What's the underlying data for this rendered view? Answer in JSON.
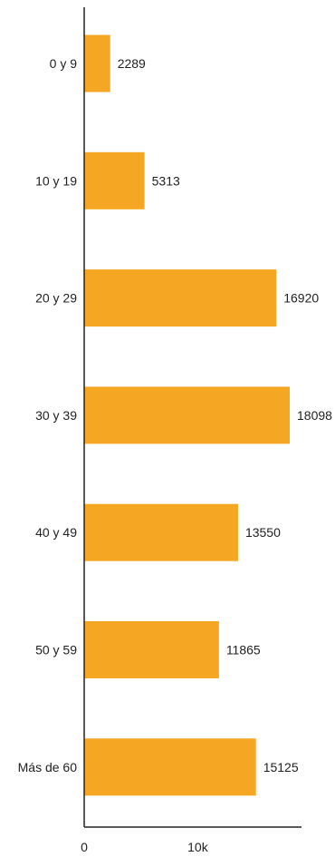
{
  "chart_data": {
    "type": "bar",
    "orientation": "horizontal",
    "title": "",
    "xlabel": "",
    "ylabel": "",
    "categories": [
      "0 y 9",
      "10 y 19",
      "20 y 29",
      "30 y 39",
      "40 y 49",
      "50 y 59",
      "Más de 60"
    ],
    "values": [
      2289,
      5313,
      16920,
      18098,
      13550,
      11865,
      15125
    ],
    "value_labels": [
      "2289",
      "5313",
      "16920",
      "18098",
      "13550",
      "11865",
      "15125"
    ],
    "xlim": [
      0,
      19000
    ],
    "x_ticks": [
      0,
      10000
    ],
    "x_tick_labels": [
      "0",
      "10k"
    ],
    "grid": false,
    "legend": "none",
    "bar_color": "#f5a623"
  }
}
